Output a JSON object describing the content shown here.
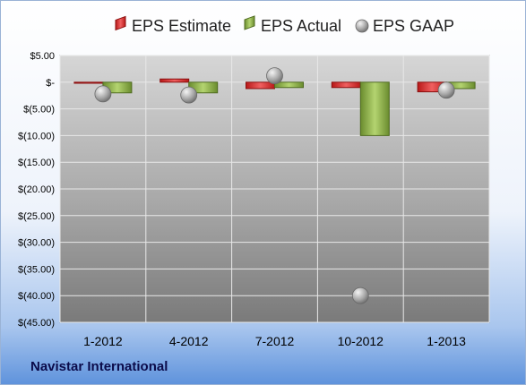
{
  "company": "Navistar International",
  "chart_data": {
    "type": "bar",
    "categories": [
      "1-2012",
      "4-2012",
      "7-2012",
      "10-2012",
      "1-2013"
    ],
    "series": [
      {
        "name": "EPS Estimate",
        "kind": "bar",
        "color": "#e03030",
        "values": [
          -0.2,
          0.6,
          -1.2,
          -1.0,
          -1.8
        ]
      },
      {
        "name": "EPS Actual",
        "kind": "bar",
        "color": "#8cb04a",
        "values": [
          -2.0,
          -2.0,
          -1.0,
          -10.0,
          -1.2
        ]
      },
      {
        "name": "EPS GAAP",
        "kind": "marker",
        "color": "#a8a8a8",
        "values": [
          -2.2,
          -2.4,
          1.2,
          -40.0,
          -1.5
        ]
      }
    ],
    "yticks": [
      "$5.00",
      "$-",
      "$(5.00)",
      "$(10.00)",
      "$(15.00)",
      "$(20.00)",
      "$(25.00)",
      "$(30.00)",
      "$(35.00)",
      "$(40.00)",
      "$(45.00)"
    ],
    "ylim": [
      -45,
      5
    ],
    "grid": true,
    "legend": "top"
  }
}
